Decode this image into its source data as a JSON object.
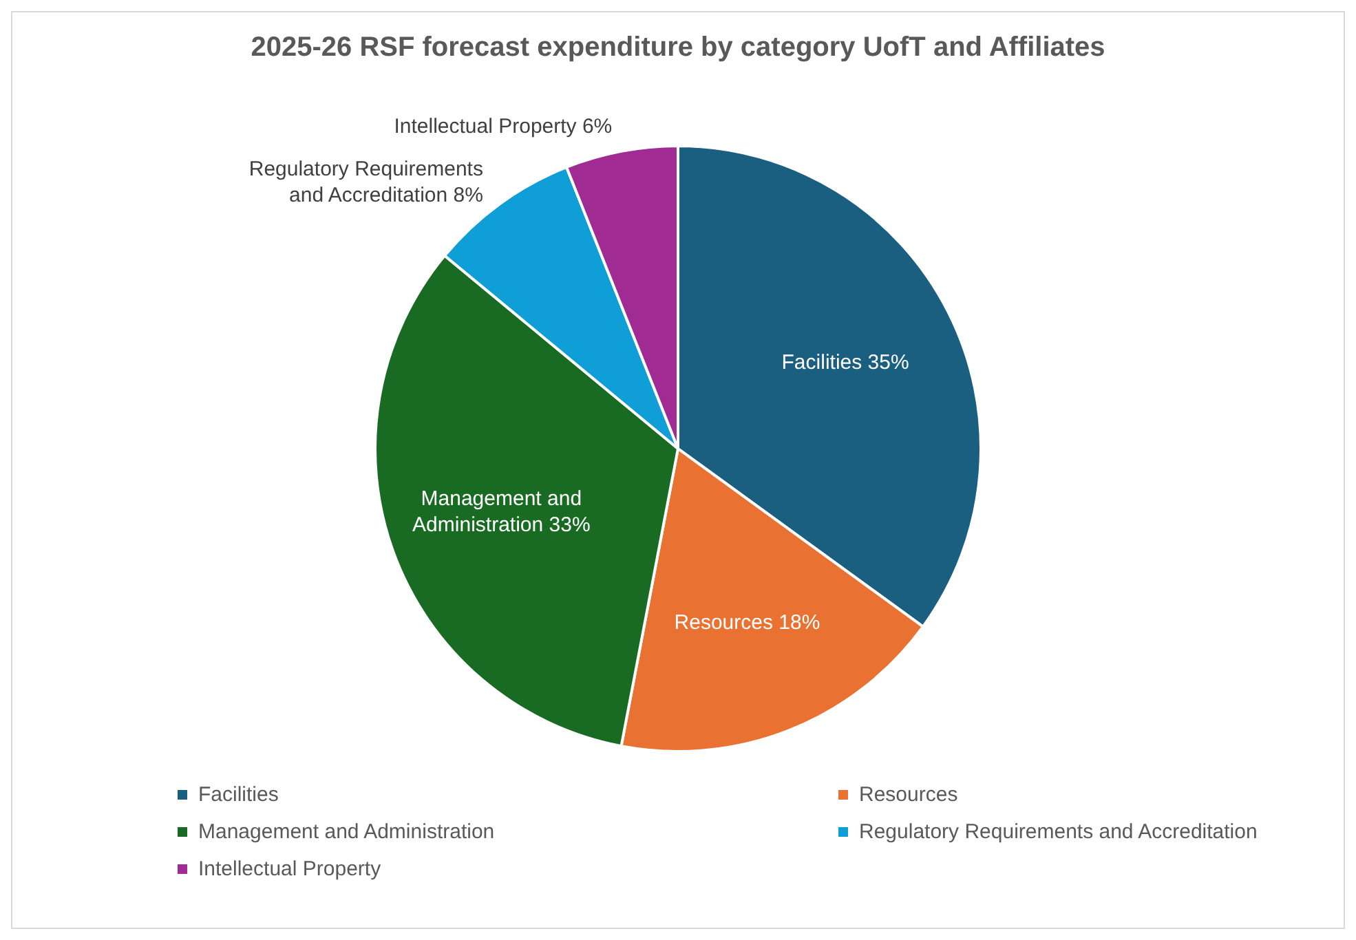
{
  "chart_data": {
    "type": "pie",
    "title": "2025-26 RSF forecast expenditure by category UofT and Affiliates",
    "categories": [
      "Facilities",
      "Resources",
      "Management and Administration",
      "Regulatory Requirements and Accreditation",
      "Intellectual Property"
    ],
    "values": [
      35,
      18,
      33,
      8,
      6
    ],
    "value_labels": [
      "35%",
      "18%",
      "33%",
      "8%",
      "6%"
    ],
    "colors": [
      "#1a5e80",
      "#e97132",
      "#196b24",
      "#0f9ed5",
      "#a02b93"
    ],
    "legend": "bottom"
  }
}
